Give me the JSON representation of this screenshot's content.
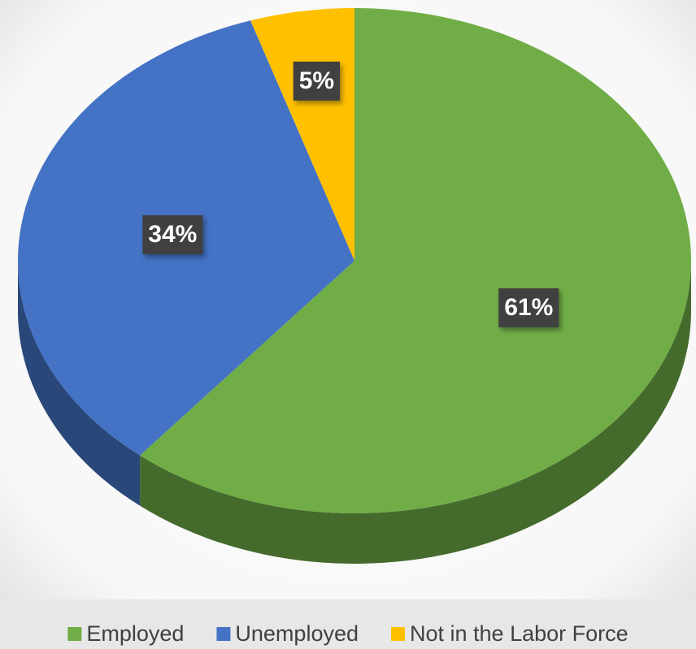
{
  "chart_data": {
    "type": "pie",
    "categories": [
      "Employed",
      "Unemployed",
      "Not in the Labor Force"
    ],
    "values": [
      61,
      34,
      5
    ],
    "value_labels": [
      "61%",
      "34%",
      "5%"
    ],
    "colors": [
      "#70ad47",
      "#4472c4",
      "#ffc000"
    ],
    "legend": "bottom"
  }
}
